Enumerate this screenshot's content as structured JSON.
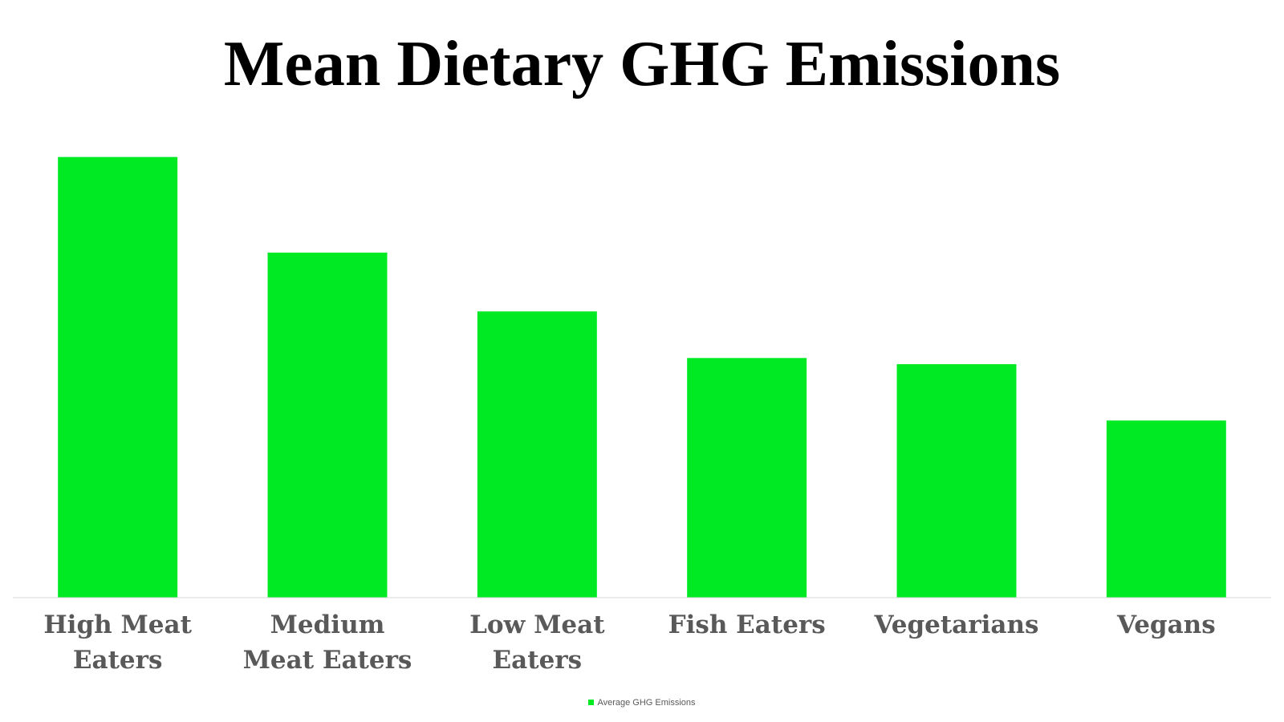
{
  "chart_data": {
    "type": "bar",
    "title": "Mean Dietary GHG Emissions",
    "categories": [
      "High Meat Eaters",
      "Medium Meat Eaters",
      "Low Meat Eaters",
      "Fish Eaters",
      "Vegetarians",
      "Vegans"
    ],
    "series": [
      {
        "name": "Average GHG Emissions",
        "color": "#00ea23",
        "values": [
          7.19,
          5.63,
          4.67,
          3.91,
          3.81,
          2.89
        ]
      }
    ],
    "ylim": [
      0,
      7.5
    ],
    "grid": false,
    "legend": "bottom"
  }
}
